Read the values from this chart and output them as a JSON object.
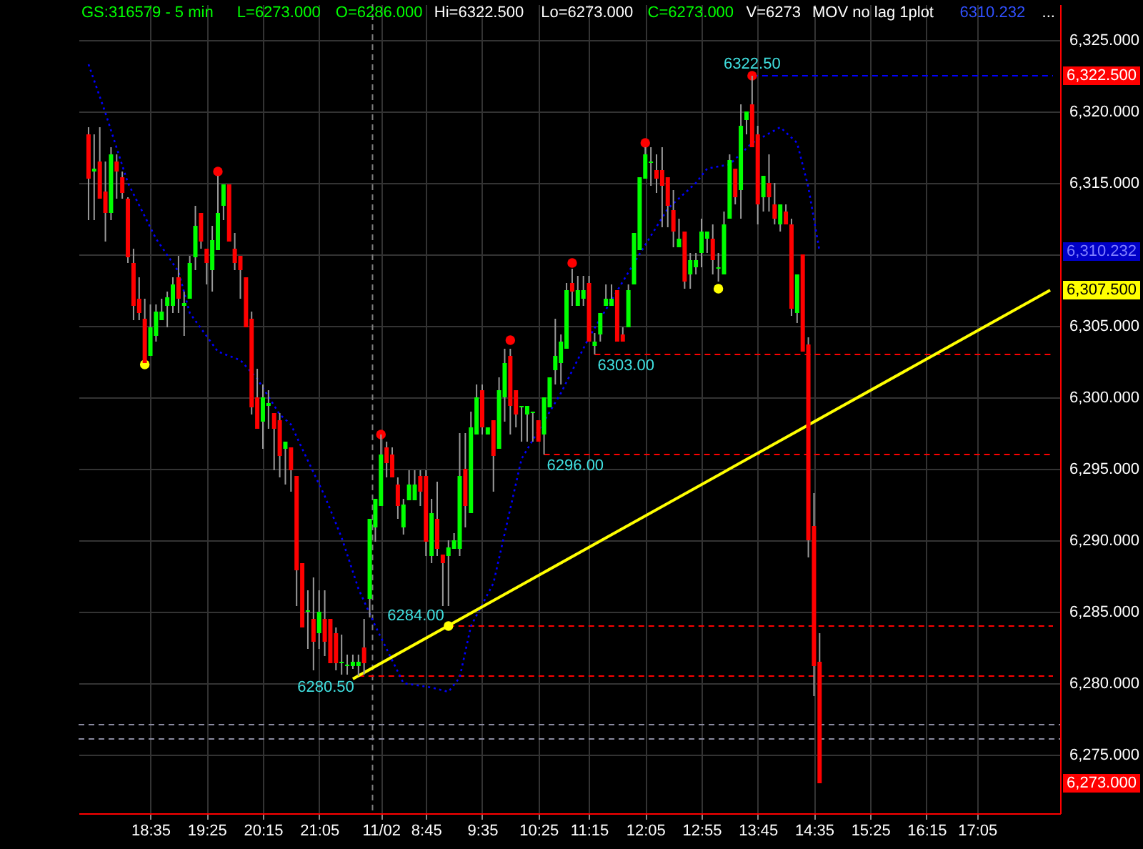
{
  "chart_data": {
    "type": "candlestick",
    "categories": [
      null,
      null,
      null,
      null,
      null,
      null,
      null,
      null,
      null,
      null,
      null,
      "18:35",
      null,
      null,
      null,
      null,
      null,
      null,
      null,
      null,
      null,
      "19:25",
      null,
      null,
      null,
      null,
      null,
      null,
      null,
      null,
      null,
      "20:15",
      null,
      null,
      null,
      null,
      null,
      null,
      null,
      null,
      null,
      "21:05",
      null,
      null,
      null,
      null,
      null,
      null,
      null,
      null,
      null,
      null,
      "11/02",
      null,
      null,
      null,
      null,
      null,
      null,
      null,
      "8:45",
      null,
      null,
      null,
      null,
      null,
      null,
      null,
      null,
      null,
      "9:35",
      null,
      null,
      null,
      null,
      null,
      null,
      null,
      null,
      null,
      "10:25",
      null,
      null,
      null,
      null,
      null,
      null,
      null,
      null,
      "11:15",
      null,
      null,
      null,
      null,
      null,
      null,
      null,
      null,
      null,
      "12:05",
      null,
      null,
      null,
      null,
      null,
      null,
      null,
      null,
      null,
      "12:55",
      null,
      null,
      null,
      null,
      null,
      null,
      null,
      null,
      null,
      "13:45",
      null,
      null,
      null,
      null,
      null,
      null,
      null,
      null,
      null,
      "14:35",
      null,
      null,
      null,
      null,
      null,
      null,
      null,
      null,
      null,
      "15:25",
      null,
      null,
      null,
      null,
      null,
      null,
      null,
      null,
      null,
      "16:15",
      null,
      null,
      null,
      null,
      null,
      null,
      null,
      null,
      "17:05",
      null,
      null,
      null,
      null,
      null,
      null,
      null,
      null,
      null,
      null,
      null,
      null,
      null
    ],
    "ohlc": [
      [
        6318.4,
        6318.9,
        6312.4,
        6315.3
      ],
      [
        6315.8,
        6318.4,
        6312.4,
        6316.0
      ],
      [
        6316.5,
        6318.9,
        6313.9,
        6313.9
      ],
      [
        6314.4,
        6316.5,
        6310.9,
        6312.9
      ],
      [
        6312.9,
        6317.5,
        6312.4,
        6317.0
      ],
      [
        6316.5,
        6317.0,
        6313.9,
        6315.8
      ],
      [
        6315.4,
        6315.8,
        6313.9,
        6314.3
      ],
      [
        6313.9,
        6314.0,
        6309.4,
        6309.8
      ],
      [
        6309.4,
        6310.4,
        6305.4,
        6306.4
      ],
      [
        6306.9,
        6308.4,
        6305.4,
        6305.9
      ],
      [
        6305.5,
        6306.9,
        6302.4,
        6302.4
      ],
      [
        6302.9,
        6306.5,
        6302.9,
        6304.9
      ],
      [
        6304.3,
        6306.5,
        6303.9,
        6306.0
      ],
      [
        6305.4,
        6306.9,
        6305.4,
        6306.0
      ],
      [
        6306.4,
        6307.4,
        6304.9,
        6307.0
      ],
      [
        6306.4,
        6308.4,
        6305.9,
        6307.9
      ],
      [
        6308.4,
        6309.9,
        6305.9,
        6306.9
      ],
      [
        6306.4,
        6307.4,
        6304.3,
        6306.6
      ],
      [
        6306.9,
        6309.9,
        6306.9,
        6309.4
      ],
      [
        6309.8,
        6313.4,
        6308.9,
        6312.0
      ],
      [
        6312.9,
        6312.9,
        6310.4,
        6310.9
      ],
      [
        6310.4,
        6310.4,
        6307.9,
        6309.4
      ],
      [
        6308.9,
        6312.0,
        6307.4,
        6311.0
      ],
      [
        6310.3,
        6315.5,
        6310.3,
        6312.9
      ],
      [
        6313.4,
        6314.9,
        6312.4,
        6314.9
      ],
      [
        6314.9,
        6314.9,
        6310.9,
        6310.9
      ],
      [
        6310.4,
        6311.5,
        6308.9,
        6309.4
      ],
      [
        6309.9,
        6309.9,
        6306.9,
        6308.9
      ],
      [
        6308.4,
        6308.4,
        6304.9,
        6304.9
      ],
      [
        6305.5,
        6306.0,
        6298.8,
        6299.3
      ],
      [
        6300.0,
        6302.0,
        6297.8,
        6297.8
      ],
      [
        6298.3,
        6300.9,
        6296.4,
        6300.0
      ],
      [
        6299.4,
        6300.5,
        6297.8,
        6299.6
      ],
      [
        6298.9,
        6298.9,
        6294.9,
        6297.8
      ],
      [
        6298.4,
        6298.9,
        6294.4,
        6295.9
      ],
      [
        6296.4,
        6296.9,
        6293.9,
        6296.9
      ],
      [
        6296.5,
        6296.5,
        6293.4,
        6294.9
      ],
      [
        6294.5,
        6294.5,
        6285.4,
        6287.9
      ],
      [
        6288.4,
        6288.4,
        6283.9,
        6283.9
      ],
      [
        6285.0,
        6286.5,
        6282.4,
        6285.1
      ],
      [
        6284.5,
        6287.4,
        6280.9,
        6282.9
      ],
      [
        6283.5,
        6286.5,
        6282.4,
        6285.0
      ],
      [
        6284.5,
        6286.5,
        6281.9,
        6282.9
      ],
      [
        6284.5,
        6284.5,
        6281.4,
        6281.4
      ],
      [
        6283.5,
        6283.9,
        6280.9,
        6281.4
      ],
      [
        6281.4,
        6283.4,
        6280.6,
        6281.5
      ],
      [
        6281.2,
        6282.0,
        6280.6,
        6281.3
      ],
      [
        6281.2,
        6282.0,
        6281.0,
        6281.5
      ],
      [
        6281.2,
        6282.0,
        6280.5,
        6281.5
      ],
      [
        6282.5,
        6284.5,
        6280.6,
        6281.4
      ],
      [
        6285.9,
        6291.5,
        6284.6,
        6291.5
      ],
      [
        6290.9,
        6292.9,
        6289.9,
        6292.9
      ],
      [
        6292.4,
        6297.4,
        6292.4,
        6296.0
      ],
      [
        6296.5,
        6296.9,
        6294.4,
        6295.4
      ],
      [
        6296.0,
        6296.5,
        6294.4,
        6294.4
      ],
      [
        6293.9,
        6294.4,
        6291.5,
        6292.4
      ],
      [
        6290.9,
        6292.9,
        6290.4,
        6292.5
      ],
      [
        6292.8,
        6294.9,
        6292.8,
        6293.9
      ],
      [
        6292.8,
        6294.9,
        6292.8,
        6293.9
      ],
      [
        6294.5,
        6294.9,
        6292.4,
        6293.4
      ],
      [
        6294.5,
        6294.9,
        6288.9,
        6289.9
      ],
      [
        6288.9,
        6292.9,
        6288.4,
        6291.9
      ],
      [
        6291.5,
        6294.1,
        6288.9,
        6289.4
      ],
      [
        6289.0,
        6289.0,
        6285.4,
        6288.4
      ],
      [
        6288.9,
        6290.0,
        6285.4,
        6289.5
      ],
      [
        6289.4,
        6290.5,
        6289.4,
        6290.0
      ],
      [
        6289.4,
        6297.5,
        6288.9,
        6294.5
      ],
      [
        6295.0,
        6297.5,
        6290.9,
        6292.4
      ],
      [
        6291.9,
        6299.0,
        6291.9,
        6297.9
      ],
      [
        6297.4,
        6300.9,
        6297.4,
        6300.0
      ],
      [
        6300.5,
        6300.9,
        6297.4,
        6297.9
      ],
      [
        6297.4,
        6297.9,
        6297.4,
        6297.9
      ],
      [
        6298.4,
        6298.4,
        6293.4,
        6295.9
      ],
      [
        6296.4,
        6301.4,
        6296.4,
        6300.5
      ],
      [
        6300.0,
        6303.4,
        6298.3,
        6302.4
      ],
      [
        6302.9,
        6303.4,
        6297.4,
        6299.4
      ],
      [
        6300.5,
        6300.5,
        6297.9,
        6298.8
      ],
      [
        6299.3,
        6299.4,
        6296.9,
        6299.4
      ],
      [
        6298.8,
        6299.4,
        6296.9,
        6299.4
      ],
      [
        6298.9,
        6299.0,
        6296.9,
        6299.0
      ],
      [
        6298.4,
        6298.4,
        6296.9,
        6296.9
      ],
      [
        6297.4,
        6300.0,
        6296.0,
        6300.0
      ],
      [
        6299.3,
        6301.4,
        6299.3,
        6301.4
      ],
      [
        6301.9,
        6305.5,
        6300.9,
        6302.9
      ],
      [
        6302.4,
        6304.4,
        6300.9,
        6303.9
      ],
      [
        6303.4,
        6308.0,
        6303.4,
        6307.5
      ],
      [
        6308.0,
        6309.0,
        6306.4,
        6307.4
      ],
      [
        6306.4,
        6308.5,
        6306.4,
        6307.5
      ],
      [
        6306.9,
        6308.5,
        6306.4,
        6307.5
      ],
      [
        6308.0,
        6308.5,
        6303.9,
        6303.9
      ],
      [
        6303.6,
        6304.5,
        6303.0,
        6303.9
      ],
      [
        6304.4,
        6305.9,
        6303.9,
        6305.9
      ],
      [
        6306.4,
        6307.9,
        6306.4,
        6306.9
      ],
      [
        6306.4,
        6307.9,
        6306.4,
        6306.9
      ],
      [
        6307.5,
        6307.5,
        6303.9,
        6303.9
      ],
      [
        6304.4,
        6304.9,
        6303.9,
        6303.9
      ],
      [
        6304.9,
        6307.9,
        6304.9,
        6307.5
      ],
      [
        6307.9,
        6311.5,
        6307.9,
        6311.5
      ],
      [
        6310.3,
        6315.4,
        6310.3,
        6315.4
      ],
      [
        6315.3,
        6317.5,
        6315.3,
        6317.0
      ],
      [
        6316.4,
        6317.5,
        6314.8,
        6316.5
      ],
      [
        6315.9,
        6317.0,
        6314.3,
        6315.3
      ],
      [
        6315.9,
        6317.5,
        6311.9,
        6314.8
      ],
      [
        6315.4,
        6315.4,
        6311.9,
        6313.4
      ],
      [
        6313.1,
        6314.5,
        6310.5,
        6311.6
      ],
      [
        6310.5,
        6312.5,
        6310.5,
        6311.1
      ],
      [
        6311.6,
        6311.6,
        6307.6,
        6308.1
      ],
      [
        6308.6,
        6310.1,
        6307.6,
        6309.6
      ],
      [
        6309.1,
        6310.1,
        6308.6,
        6309.6
      ],
      [
        6310.1,
        6312.5,
        6309.1,
        6311.6
      ],
      [
        6311.1,
        6311.6,
        6310.1,
        6311.6
      ],
      [
        6311.1,
        6312.1,
        6308.6,
        6309.6
      ],
      [
        6309.0,
        6310.1,
        6308.1,
        6309.1
      ],
      [
        6308.6,
        6313.0,
        6308.6,
        6312.1
      ],
      [
        6312.5,
        6317.0,
        6312.5,
        6316.6
      ],
      [
        6316.0,
        6316.0,
        6313.5,
        6314.0
      ],
      [
        6314.5,
        6320.5,
        6312.5,
        6319.0
      ],
      [
        6319.4,
        6320.0,
        6318.4,
        6320.0
      ],
      [
        6320.5,
        6322.5,
        6317.5,
        6317.5
      ],
      [
        6318.4,
        6319.0,
        6312.1,
        6313.5
      ],
      [
        6314.0,
        6315.5,
        6313.0,
        6315.5
      ],
      [
        6315.0,
        6317.0,
        6313.0,
        6314.0
      ],
      [
        6313.5,
        6315.0,
        6312.1,
        6312.5
      ],
      [
        6312.1,
        6313.5,
        6311.6,
        6313.5
      ],
      [
        6313.0,
        6313.5,
        6312.1,
        6312.1
      ],
      [
        6312.1,
        6312.5,
        6305.7,
        6306.2
      ],
      [
        6305.9,
        6308.6,
        6305.2,
        6308.6
      ],
      [
        6310.0,
        6310.0,
        6303.2,
        6303.2
      ],
      [
        6303.7,
        6304.2,
        6288.8,
        6290.0
      ],
      [
        6291.0,
        6293.3,
        6279.1,
        6281.2
      ],
      [
        6281.5,
        6283.5,
        6273.0,
        6273.0
      ],
      null,
      null,
      null,
      null,
      null,
      null,
      null,
      null,
      null,
      null,
      null,
      null,
      null,
      null,
      null,
      null,
      null,
      null,
      null,
      null,
      null,
      null,
      null,
      null,
      null,
      null,
      null,
      null,
      null,
      null,
      null,
      null,
      null,
      null,
      null,
      null,
      null,
      null,
      null,
      null,
      null
    ],
    "series": [
      {
        "type": "line",
        "color": "#0000ff",
        "line_style": "dotted",
        "values": [
          6323.3,
          null,
          null,
          6319.9,
          null,
          null,
          null,
          6315.0,
          null,
          null,
          null,
          null,
          6311.1,
          null,
          null,
          null,
          6308.8,
          null,
          6305.9,
          null,
          null,
          null,
          null,
          6303.2,
          null,
          null,
          null,
          6302.6,
          null,
          null,
          6301.3,
          null,
          null,
          null,
          6298.8,
          null,
          6298.1,
          null,
          6296.4,
          null,
          null,
          null,
          6293.1,
          null,
          null,
          6290.2,
          null,
          null,
          6286.6,
          null,
          null,
          6284.0,
          null,
          null,
          null,
          null,
          6280.0,
          null,
          null,
          null,
          null,
          6279.7,
          null,
          null,
          6279.4,
          null,
          6280.4,
          null,
          6284.0,
          null,
          null,
          null,
          6287.0,
          null,
          null,
          null,
          null,
          6295.7,
          null,
          null,
          null,
          null,
          null,
          null,
          6300.3,
          null,
          null,
          null,
          null,
          6304.2,
          null,
          null,
          null,
          null,
          null,
          null,
          null,
          6309.4,
          null,
          null,
          null,
          null,
          null,
          6313.2,
          null,
          null,
          null,
          null,
          6315.0,
          null,
          6316.0,
          null,
          null,
          null,
          6316.3,
          null,
          null,
          null,
          6317.8,
          null,
          null,
          null,
          null,
          6318.9,
          null,
          null,
          6317.8,
          null,
          6314.7,
          null,
          6310.2,
          null,
          null,
          null,
          null,
          null,
          null,
          null,
          null,
          null,
          null,
          null,
          null,
          null,
          null,
          null,
          null,
          null,
          null,
          null,
          null,
          null,
          null,
          null,
          null,
          null,
          null,
          null,
          null,
          null,
          null,
          null,
          null,
          null,
          null,
          null,
          null,
          null,
          null,
          null,
          null,
          null
        ]
      },
      {
        "type": "line",
        "color": "#ffff00",
        "line_style": "solid",
        "values": [
          null,
          null,
          null,
          null,
          null,
          null,
          null,
          null,
          null,
          null,
          null,
          null,
          null,
          null,
          null,
          null,
          null,
          null,
          null,
          null,
          null,
          null,
          null,
          null,
          null,
          null,
          null,
          null,
          null,
          null,
          null,
          null,
          null,
          null,
          null,
          null,
          null,
          null,
          null,
          null,
          null,
          null,
          null,
          null,
          null,
          null,
          null,
          6280.3,
          null,
          null,
          null,
          null,
          null,
          null,
          null,
          null,
          null,
          null,
          null,
          null,
          null,
          null,
          null,
          null,
          null,
          null,
          null,
          null,
          null,
          null,
          null,
          null,
          null,
          null,
          null,
          null,
          null,
          null,
          null,
          null,
          null,
          null,
          null,
          null,
          null,
          null,
          null,
          null,
          null,
          null,
          null,
          null,
          null,
          null,
          null,
          null,
          null,
          null,
          null,
          null,
          null,
          null,
          null,
          null,
          null,
          null,
          null,
          null,
          null,
          null,
          null,
          null,
          null,
          null,
          null,
          null,
          null,
          null,
          null,
          null,
          null,
          null,
          null,
          null,
          null,
          null,
          null,
          null,
          null,
          null,
          null,
          null,
          null,
          null,
          null,
          null,
          null,
          null,
          null,
          null,
          null,
          null,
          null,
          null,
          null,
          null,
          null,
          null,
          null,
          null,
          null,
          null,
          null,
          null,
          null,
          null,
          null,
          null,
          null,
          null,
          null,
          null,
          null,
          null,
          null,
          null,
          null,
          null,
          null,
          null,
          null,
          6307.5
        ]
      },
      {
        "type": "scatter",
        "color": "#ff0000",
        "marker": "circle",
        "values": [
          null,
          null,
          null,
          null,
          null,
          null,
          null,
          null,
          null,
          null,
          null,
          null,
          null,
          null,
          null,
          null,
          null,
          null,
          null,
          null,
          null,
          null,
          null,
          6315.8,
          null,
          null,
          null,
          null,
          null,
          null,
          null,
          null,
          null,
          null,
          null,
          null,
          null,
          null,
          null,
          null,
          null,
          null,
          null,
          null,
          null,
          null,
          null,
          null,
          null,
          null,
          null,
          null,
          6297.4,
          null,
          null,
          null,
          null,
          null,
          null,
          null,
          null,
          null,
          null,
          null,
          null,
          null,
          null,
          null,
          null,
          null,
          null,
          null,
          null,
          null,
          null,
          6304.0,
          null,
          null,
          null,
          null,
          null,
          null,
          null,
          null,
          null,
          null,
          6309.4,
          null,
          null,
          null,
          null,
          null,
          null,
          null,
          null,
          null,
          null,
          null,
          null,
          6317.8,
          null,
          null,
          null,
          null,
          null,
          null,
          null,
          null,
          null,
          null,
          null,
          null,
          null,
          null,
          null,
          null,
          null,
          null,
          6322.5,
          null,
          null,
          null,
          null,
          null,
          null,
          null,
          null,
          null,
          null,
          null,
          null,
          null,
          null,
          null,
          null,
          null,
          null,
          null,
          null,
          null,
          null,
          null,
          null,
          null,
          null,
          null,
          null,
          null,
          null,
          null,
          null,
          null,
          null,
          null,
          null,
          null,
          null,
          null,
          null,
          null,
          null,
          null,
          null,
          null,
          null,
          null,
          null,
          null,
          null,
          null,
          null,
          null
        ]
      },
      {
        "type": "scatter",
        "color": "#ffff00",
        "marker": "circle",
        "values": [
          null,
          null,
          null,
          null,
          null,
          null,
          null,
          null,
          null,
          null,
          6302.3,
          null,
          null,
          null,
          null,
          null,
          null,
          null,
          null,
          null,
          null,
          null,
          null,
          null,
          null,
          null,
          null,
          null,
          null,
          null,
          null,
          null,
          null,
          null,
          null,
          null,
          null,
          null,
          null,
          null,
          null,
          null,
          null,
          null,
          null,
          null,
          null,
          null,
          null,
          null,
          null,
          null,
          null,
          null,
          null,
          null,
          null,
          null,
          null,
          null,
          null,
          null,
          null,
          null,
          6284.0,
          null,
          null,
          null,
          null,
          null,
          null,
          null,
          null,
          null,
          null,
          null,
          null,
          null,
          null,
          null,
          null,
          null,
          null,
          null,
          null,
          null,
          null,
          null,
          null,
          null,
          null,
          null,
          null,
          null,
          null,
          null,
          null,
          null,
          null,
          null,
          null,
          null,
          null,
          null,
          null,
          null,
          null,
          null,
          null,
          null,
          null,
          null,
          6307.6,
          null,
          null,
          null,
          null,
          null,
          null,
          null,
          null,
          null,
          null,
          null,
          null,
          null,
          null,
          null,
          null,
          null,
          null,
          null,
          null,
          null,
          null,
          null,
          null,
          null,
          null,
          null,
          null,
          null,
          null,
          null,
          null,
          null,
          null,
          null,
          null,
          null,
          null,
          null,
          null,
          null,
          null,
          null,
          null,
          null,
          null,
          null,
          null,
          null,
          null,
          null,
          null,
          null,
          null,
          null,
          null,
          null,
          null,
          null
        ]
      }
    ],
    "ylim": [
      6270.9,
      6327.5
    ],
    "yticks": [
      {
        "value": 6275,
        "label": "6,275.000"
      },
      {
        "value": 6280,
        "label": "6,280.000"
      },
      {
        "value": 6285,
        "label": "6,285.000"
      },
      {
        "value": 6290,
        "label": "6,290.000"
      },
      {
        "value": 6295,
        "label": "6,295.000"
      },
      {
        "value": 6300,
        "label": "6,300.000"
      },
      {
        "value": 6305,
        "label": "6,305.000"
      },
      {
        "value": 6310,
        "label": null
      },
      {
        "value": 6315,
        "label": "6,315.000"
      },
      {
        "value": 6320,
        "label": "6,320.000"
      },
      {
        "value": 6325,
        "label": "6,325.000"
      }
    ],
    "grid": true,
    "ref_lines": [
      {
        "axis": "y",
        "value": 6322.5,
        "label": "6322.50",
        "color": "#0000ff",
        "line_style": "dashed"
      },
      {
        "axis": "y",
        "value": 6303,
        "label": "6303.00",
        "color": "#ff0000",
        "line_style": "dashed"
      },
      {
        "axis": "y",
        "value": 6296,
        "label": "6296.00",
        "color": "#ff0000",
        "line_style": "dashed"
      },
      {
        "axis": "y",
        "value": 6284,
        "label": "6284.00",
        "color": "#ff0000",
        "line_style": "dashed"
      },
      {
        "axis": "y",
        "value": 6280.5,
        "label": "6280.50",
        "color": "#ff0000",
        "line_style": "dashed"
      },
      {
        "axis": "y",
        "value": 6277.1,
        "color": "#8a8aa0",
        "line_style": "dashed"
      },
      {
        "axis": "y",
        "value": 6276.1,
        "color": "#8a8aa0",
        "line_style": "dashed"
      }
    ],
    "annotations": [
      "GS:316579 - 5 min",
      "L=6273.000",
      "O=6286.000",
      "Hi=6322.500",
      "Lo=6273.000",
      "C=6273.000",
      "V=6273",
      "MOV no lag 1plot",
      "6310.232",
      "...",
      "6,322.500",
      "6,310.232",
      "6,307.500",
      "6,273.000"
    ]
  }
}
